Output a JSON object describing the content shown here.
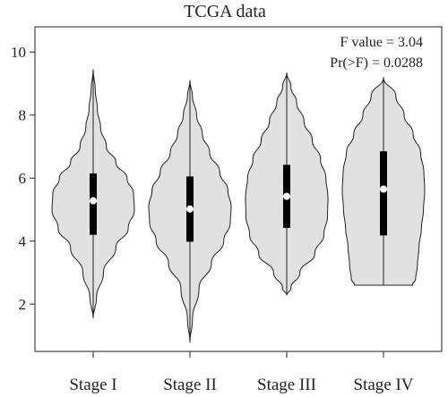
{
  "chart_data": {
    "type": "violin",
    "title": "TCGA data",
    "xlabel": "",
    "ylabel": "",
    "categories": [
      "Stage I",
      "Stage II",
      "Stage III",
      "Stage IV"
    ],
    "ylim": [
      0.5,
      10.8
    ],
    "yticks": [
      2,
      4,
      6,
      8,
      10
    ],
    "grid": false,
    "annotations": [
      "F value = 3.04",
      "Pr(>F) = 0.0288"
    ],
    "groups": [
      {
        "name": "Stage I",
        "min": 1.55,
        "q1": 4.2,
        "median": 5.28,
        "q3": 6.15,
        "max": 9.45,
        "profile": [
          [
            1.55,
            0.0
          ],
          [
            2.2,
            0.08
          ],
          [
            3.0,
            0.25
          ],
          [
            3.8,
            0.55
          ],
          [
            4.4,
            0.85
          ],
          [
            5.0,
            1.0
          ],
          [
            5.5,
            0.98
          ],
          [
            6.0,
            0.82
          ],
          [
            6.5,
            0.55
          ],
          [
            7.0,
            0.32
          ],
          [
            7.6,
            0.18
          ],
          [
            8.2,
            0.1
          ],
          [
            8.8,
            0.05
          ],
          [
            9.45,
            0.0
          ]
        ]
      },
      {
        "name": "Stage II",
        "min": 0.78,
        "q1": 3.98,
        "median": 5.02,
        "q3": 6.05,
        "max": 9.1,
        "profile": [
          [
            0.78,
            0.0
          ],
          [
            1.5,
            0.06
          ],
          [
            2.5,
            0.22
          ],
          [
            3.3,
            0.52
          ],
          [
            4.0,
            0.82
          ],
          [
            4.6,
            0.98
          ],
          [
            5.1,
            1.0
          ],
          [
            5.6,
            0.92
          ],
          [
            6.2,
            0.72
          ],
          [
            6.8,
            0.48
          ],
          [
            7.4,
            0.3
          ],
          [
            8.0,
            0.16
          ],
          [
            8.6,
            0.06
          ],
          [
            9.1,
            0.0
          ]
        ]
      },
      {
        "name": "Stage III",
        "min": 2.28,
        "q1": 4.42,
        "median": 5.42,
        "q3": 6.42,
        "max": 9.35,
        "profile": [
          [
            2.28,
            0.0
          ],
          [
            2.5,
            0.1
          ],
          [
            3.0,
            0.32
          ],
          [
            3.6,
            0.68
          ],
          [
            4.2,
            0.9
          ],
          [
            4.8,
            0.99
          ],
          [
            5.4,
            1.0
          ],
          [
            6.0,
            0.95
          ],
          [
            6.6,
            0.82
          ],
          [
            7.2,
            0.62
          ],
          [
            7.8,
            0.42
          ],
          [
            8.4,
            0.24
          ],
          [
            8.9,
            0.1
          ],
          [
            9.35,
            0.0
          ]
        ]
      },
      {
        "name": "Stage IV",
        "min": 2.6,
        "q1": 4.18,
        "median": 5.65,
        "q3": 6.85,
        "max": 9.2,
        "profile": [
          [
            2.6,
            0.7
          ],
          [
            2.8,
            0.78
          ],
          [
            3.2,
            0.82
          ],
          [
            3.8,
            0.86
          ],
          [
            4.4,
            0.92
          ],
          [
            5.0,
            0.97
          ],
          [
            5.6,
            1.0
          ],
          [
            6.2,
            0.98
          ],
          [
            6.8,
            0.9
          ],
          [
            7.4,
            0.72
          ],
          [
            8.0,
            0.5
          ],
          [
            8.6,
            0.3
          ],
          [
            9.2,
            0.0
          ]
        ]
      }
    ],
    "colors": {
      "fill": "#e1e1e1",
      "stroke": "#222222",
      "box": "#000000",
      "median": "#ffffff"
    }
  }
}
